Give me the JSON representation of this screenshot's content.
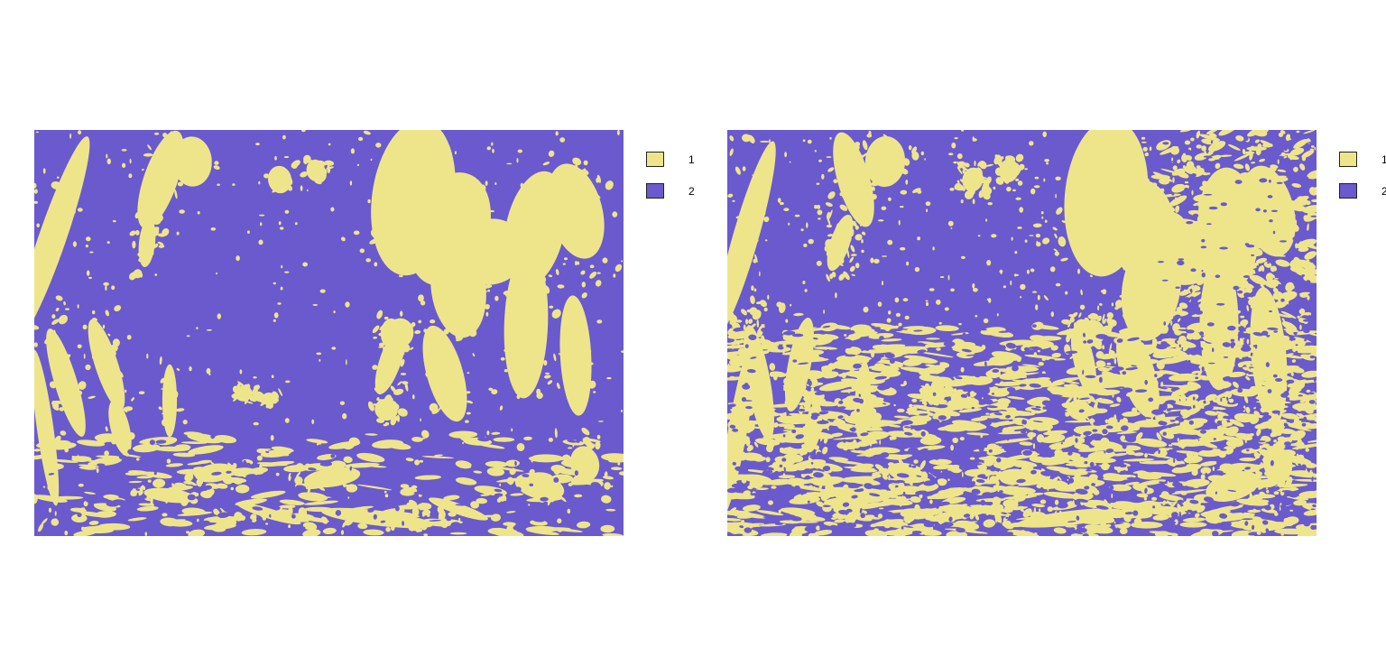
{
  "chart_data": [
    {
      "type": "heatmap",
      "title": "",
      "xlabel": "",
      "ylabel": "",
      "grid": false,
      "legend_position": "right",
      "classes": [
        {
          "value": "1",
          "color": "#EEE58B"
        },
        {
          "value": "2",
          "color": "#6A5ACD"
        }
      ],
      "class_1_fraction": 0.22
    },
    {
      "type": "heatmap",
      "title": "",
      "xlabel": "",
      "ylabel": "",
      "grid": false,
      "legend_position": "right",
      "classes": [
        {
          "value": "1",
          "color": "#EEE58B"
        },
        {
          "value": "2",
          "color": "#6A5ACD"
        }
      ],
      "class_1_fraction": 0.45
    }
  ],
  "colors": {
    "class_1": "#EEE58B",
    "class_2": "#6A5ACD",
    "background": "#ffffff"
  }
}
